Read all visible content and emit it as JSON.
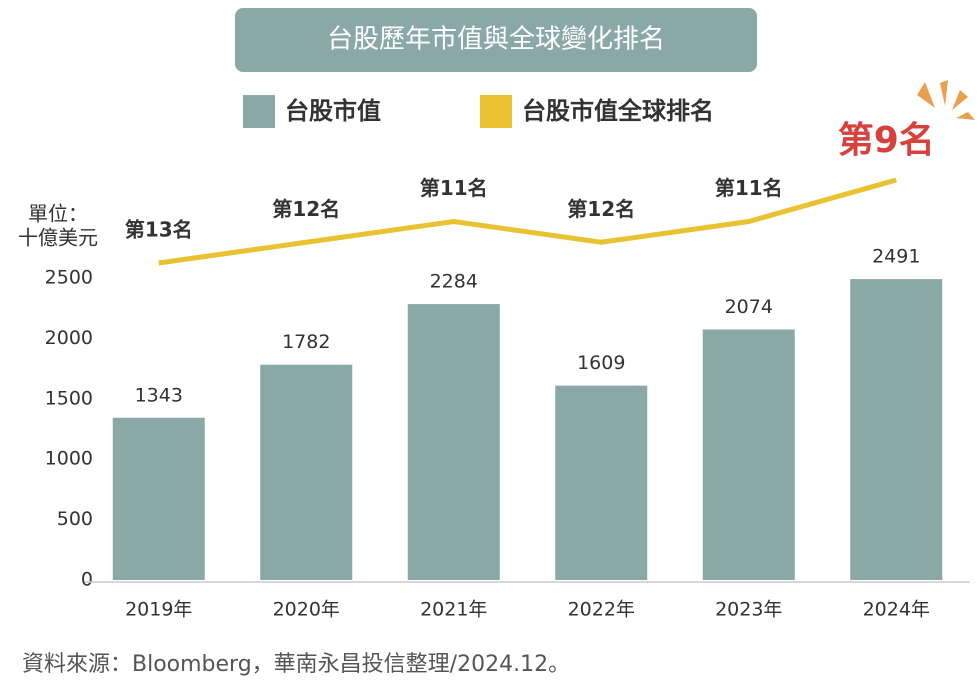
{
  "chart_data": {
    "type": "bar_line",
    "title": "台股歷年市值與全球變化排名",
    "y_label": [
      "單位：",
      "十億美元"
    ],
    "categories": [
      "2019年",
      "2020年",
      "2021年",
      "2022年",
      "2023年",
      "2024年"
    ],
    "series": [
      {
        "name": "台股市值",
        "type": "bar",
        "color": "#8aa8a6",
        "values": [
          1343,
          1782,
          2284,
          1609,
          2074,
          2491
        ]
      },
      {
        "name": "台股市值全球排名",
        "type": "line",
        "color": "#e8c230",
        "values": [
          13,
          12,
          11,
          12,
          11,
          9
        ],
        "value_labels": [
          "第13名",
          "第12名",
          "第11名",
          "第12名",
          "第11名",
          "第9名"
        ],
        "value_label_colors": [
          "#333333",
          "#333333",
          "#333333",
          "#333333",
          "#333333",
          "#d8403c"
        ]
      }
    ],
    "ylim": [
      0,
      2500
    ],
    "yticks": [
      0,
      500,
      1000,
      1500,
      2000,
      2500
    ],
    "source": "資料來源：Bloomberg，華南永昌投信整理/2024.12。"
  }
}
